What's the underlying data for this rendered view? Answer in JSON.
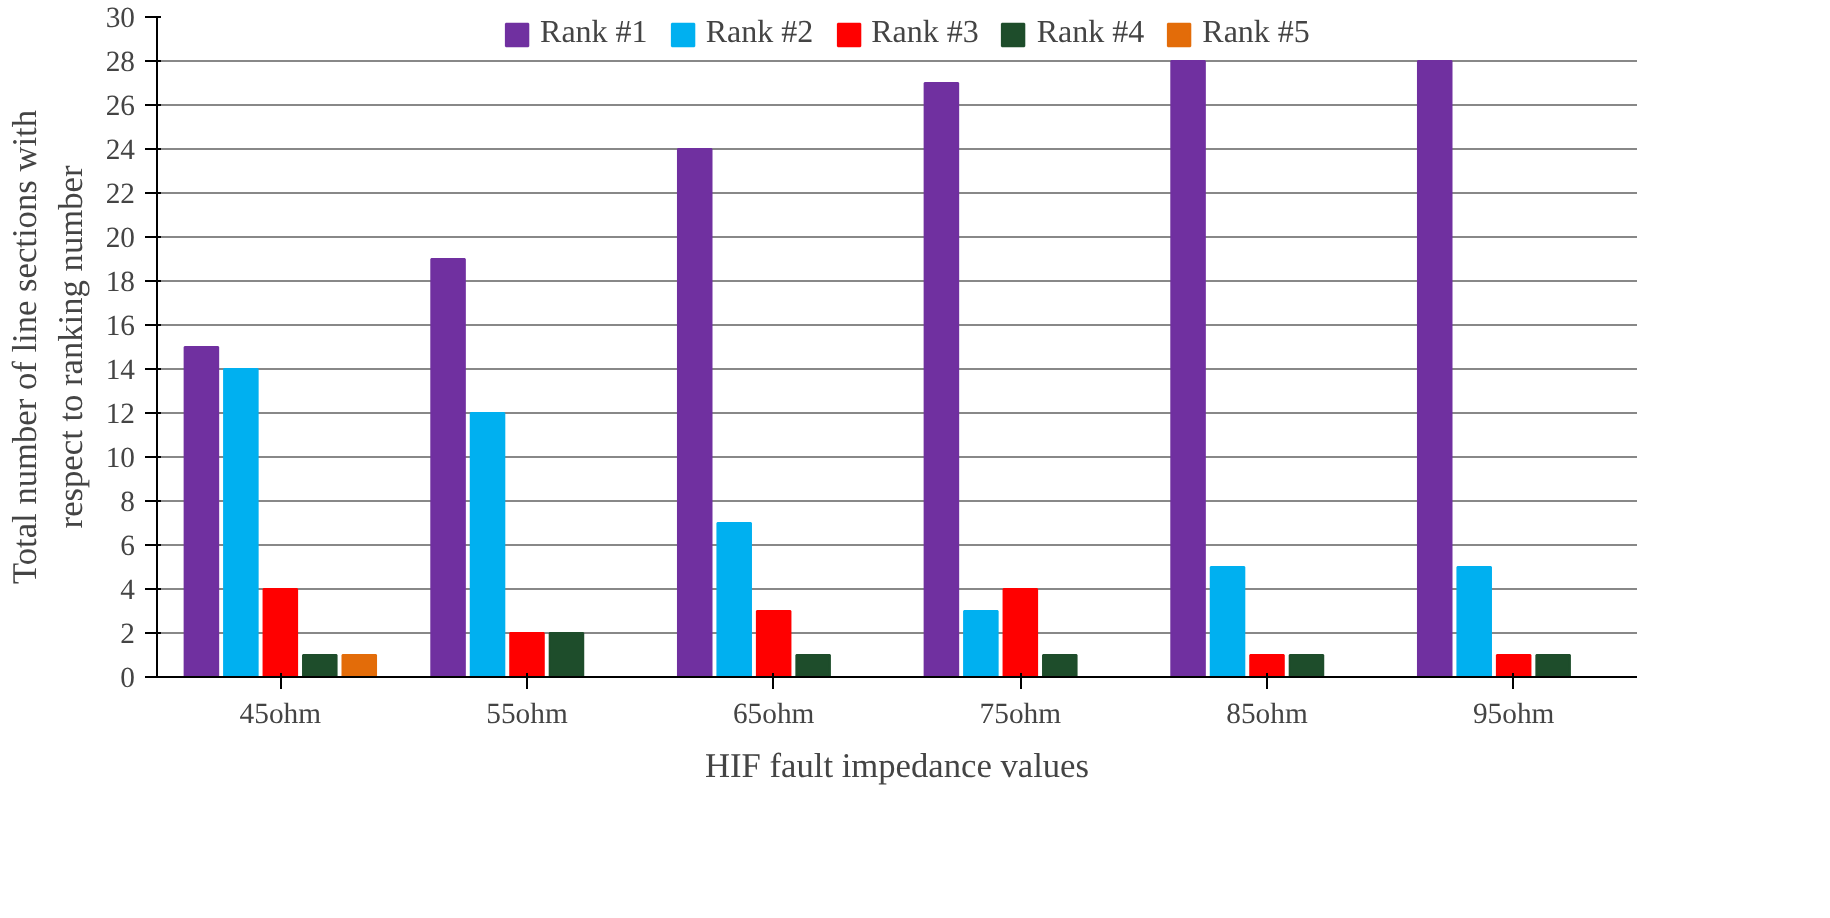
{
  "chart_data": {
    "type": "bar",
    "xlabel": "HIF fault impedance values",
    "ylabel": "Total number of line sections with respect to ranking number",
    "categories": [
      "45ohm",
      "55ohm",
      "65ohm",
      "75ohm",
      "85ohm",
      "95ohm"
    ],
    "series": [
      {
        "name": "Rank #1",
        "color": "#7030a0",
        "values": [
          15,
          19,
          24,
          27,
          28,
          28
        ]
      },
      {
        "name": "Rank #2",
        "color": "#00b0f0",
        "values": [
          14,
          12,
          7,
          3,
          5,
          5
        ]
      },
      {
        "name": "Rank #3",
        "color": "#ff0000",
        "values": [
          4,
          2,
          3,
          4,
          1,
          1
        ]
      },
      {
        "name": "Rank #4",
        "color": "#1e4d2b",
        "values": [
          1,
          2,
          1,
          1,
          1,
          1
        ]
      },
      {
        "name": "Rank #5",
        "color": "#e36c09",
        "values": [
          1,
          0,
          0,
          0,
          0,
          0
        ]
      }
    ],
    "ylim": [
      0,
      30
    ],
    "yticks": [
      0,
      2,
      4,
      6,
      8,
      10,
      12,
      14,
      16,
      18,
      20,
      22,
      24,
      26,
      28,
      30
    ],
    "grid": "y",
    "legend": "top"
  }
}
